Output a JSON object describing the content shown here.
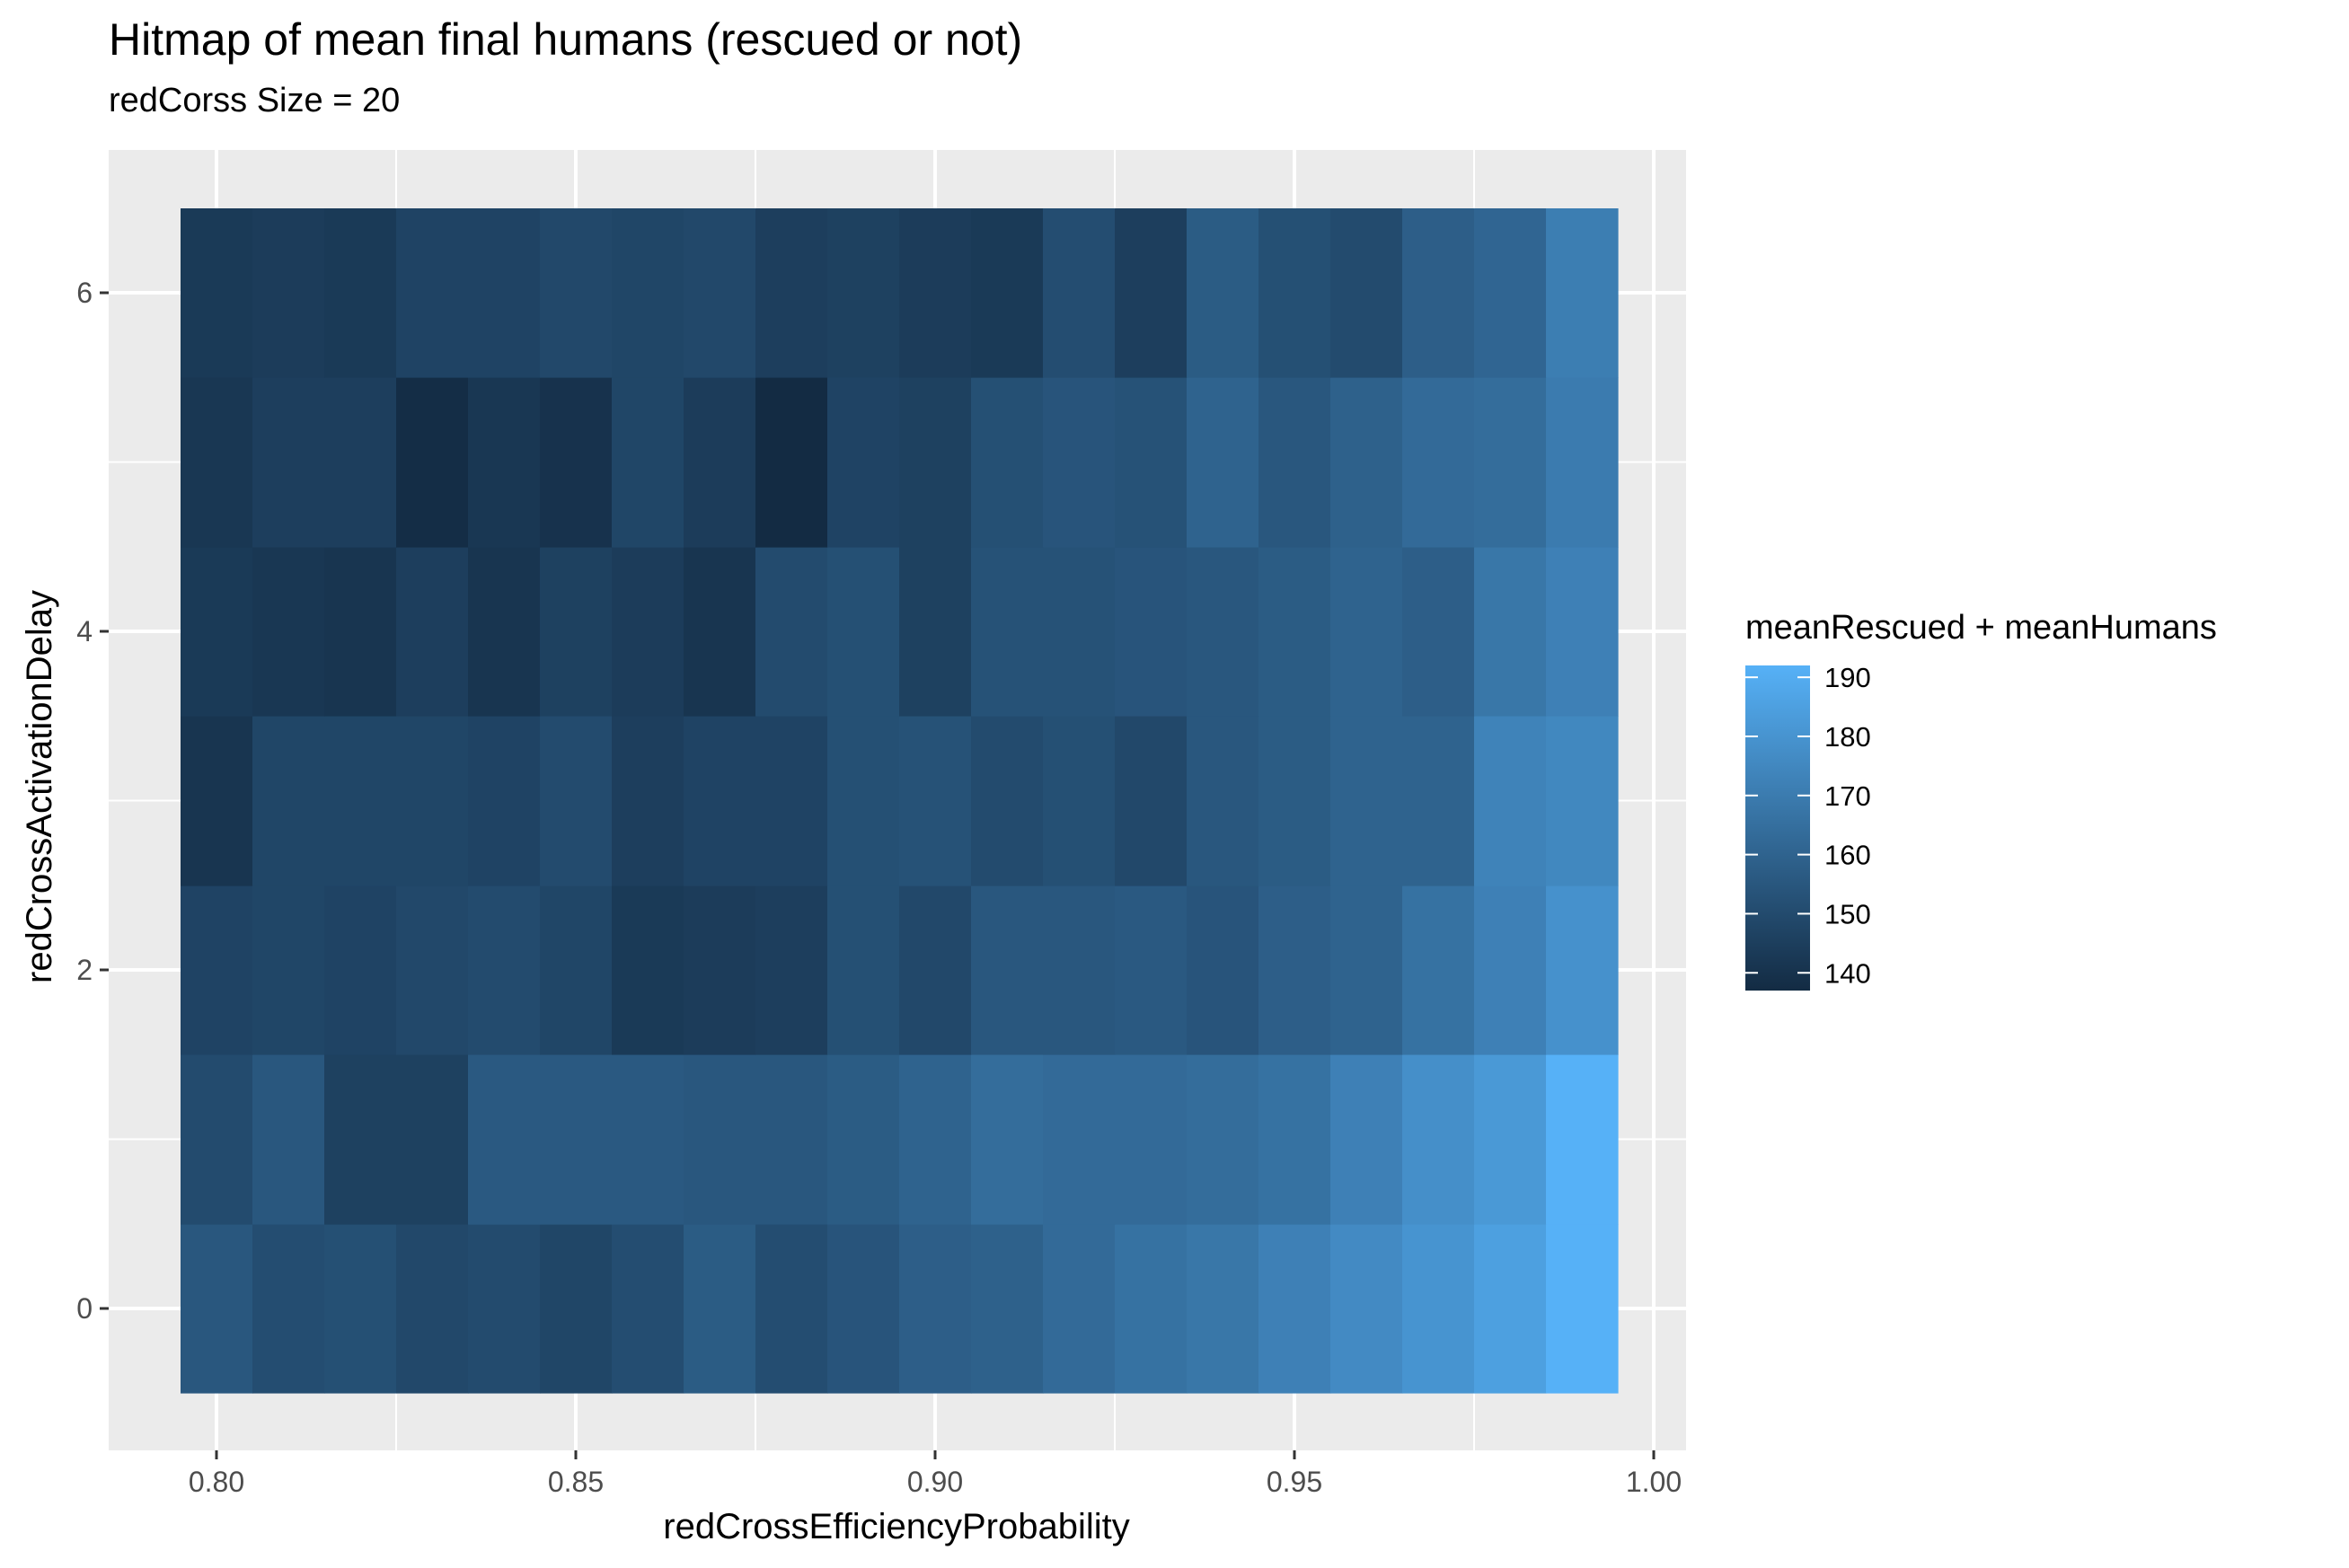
{
  "chart_data": {
    "type": "heatmap",
    "title": "Hitmap of mean final humans (rescued or not)",
    "subtitle": "redCorss Size =  20",
    "xlabel": "redCrossEfficiencyProbability",
    "ylabel": "redCrossActivationDelay",
    "x": [
      0.8,
      0.81,
      0.82,
      0.83,
      0.84,
      0.85,
      0.86,
      0.87,
      0.88,
      0.89,
      0.9,
      0.91,
      0.92,
      0.93,
      0.94,
      0.95,
      0.96,
      0.97,
      0.98,
      0.99
    ],
    "y": [
      0,
      1,
      2,
      3,
      4,
      5,
      6
    ],
    "values": [
      [
        155,
        151,
        152,
        149,
        150,
        148,
        151,
        157,
        151,
        154,
        158,
        159,
        163,
        166,
        168,
        172,
        176,
        180,
        185,
        192
      ],
      [
        150,
        155,
        146,
        146,
        156,
        156,
        156,
        155,
        155,
        157,
        160,
        164,
        163,
        163,
        164,
        166,
        172,
        178,
        182,
        192
      ],
      [
        147,
        148,
        147,
        149,
        150,
        148,
        143,
        144,
        145,
        152,
        149,
        155,
        155,
        156,
        154,
        158,
        160,
        166,
        172,
        179
      ],
      [
        141,
        148,
        148,
        148,
        147,
        150,
        145,
        147,
        147,
        152,
        153,
        150,
        152,
        149,
        155,
        157,
        160,
        160,
        173,
        175
      ],
      [
        143,
        142,
        141,
        145,
        141,
        146,
        144,
        141,
        150,
        152,
        146,
        153,
        153,
        154,
        155,
        157,
        160,
        158,
        168,
        172
      ],
      [
        142,
        145,
        145,
        138,
        142,
        140,
        148,
        144,
        137,
        147,
        146,
        152,
        154,
        153,
        160,
        155,
        159,
        163,
        164,
        170
      ],
      [
        143,
        144,
        143,
        147,
        147,
        149,
        148,
        149,
        145,
        146,
        144,
        143,
        151,
        145,
        157,
        152,
        150,
        158,
        161,
        171
      ]
    ],
    "xlim": [
      0.795,
      1.0
    ],
    "ylim": [
      -0.5,
      6.5
    ],
    "x_ticks": [
      "0.80",
      "0.85",
      "0.90",
      "0.95",
      "1.00"
    ],
    "y_ticks": [
      "0",
      "2",
      "4",
      "6"
    ],
    "grid": true,
    "legend": {
      "title": "meanRescued + meanHumans",
      "position": "right",
      "breaks": [
        "190",
        "180",
        "170",
        "160",
        "150",
        "140"
      ],
      "min": 137,
      "max": 192,
      "low_color": "#132b43",
      "high_color": "#56b1f7"
    },
    "panel_color": "#ebebeb",
    "grid_color": "#ffffff"
  }
}
